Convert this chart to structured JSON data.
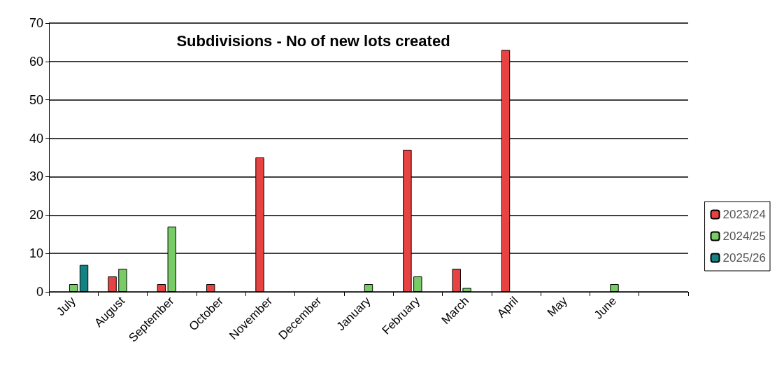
{
  "chart_data": {
    "type": "bar",
    "title": "Subdivisions - No of new lots created",
    "categories": [
      "July",
      "August",
      "September",
      "October",
      "November",
      "December",
      "January",
      "February",
      "March",
      "April",
      "May",
      "June",
      null
    ],
    "series": [
      {
        "name": "2023/24",
        "color": "#e84343",
        "values": [
          null,
          4,
          2,
          2,
          35,
          null,
          null,
          37,
          6,
          63,
          null,
          null,
          null
        ]
      },
      {
        "name": "2024/25",
        "color": "#78cc66",
        "values": [
          2,
          6,
          17,
          null,
          null,
          null,
          2,
          4,
          1,
          null,
          null,
          2,
          null
        ]
      },
      {
        "name": "2025/26",
        "color": "#148282",
        "values": [
          7,
          null,
          null,
          null,
          null,
          null,
          null,
          null,
          null,
          null,
          null,
          null,
          null
        ]
      }
    ],
    "ylim": [
      0,
      70
    ],
    "yticks": [
      0,
      10,
      20,
      30,
      40,
      50,
      60,
      70
    ],
    "grid": "y",
    "legend": "right"
  }
}
